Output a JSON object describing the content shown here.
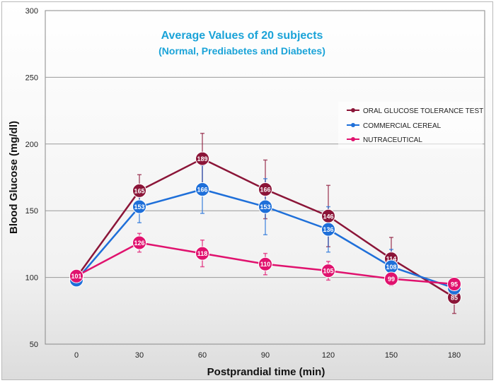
{
  "chart_data": {
    "type": "line",
    "title": "Average Values of 20 subjects",
    "subtitle": "(Normal, Prediabetes and Diabetes)",
    "xlabel": "Postprandial time (min)",
    "ylabel": "Blood Glucose  (mg/dl)",
    "x": [
      0,
      30,
      60,
      90,
      120,
      150,
      180
    ],
    "ylim": [
      50,
      300
    ],
    "yticks": [
      50,
      100,
      150,
      200,
      250,
      300
    ],
    "grid": true,
    "legend_position": "right",
    "series": [
      {
        "name": "ORAL GLUCOSE TOLERANCE TEST",
        "color": "#8b1538",
        "values": [
          100,
          165,
          189,
          166,
          146,
          114,
          85
        ],
        "error_high": [
          104,
          177,
          208,
          188,
          169,
          130,
          94
        ],
        "error_low": [
          96,
          153,
          170,
          144,
          123,
          98,
          73
        ],
        "labels": [
          "100",
          "165",
          "189",
          "166",
          "146",
          "114",
          "85"
        ]
      },
      {
        "name": "COMMERCIAL CEREAL",
        "color": "#1e6fd9",
        "values": [
          98,
          153,
          166,
          153,
          136,
          108,
          92
        ],
        "error_high": [
          102,
          165,
          184,
          174,
          153,
          121,
          97
        ],
        "error_low": [
          94,
          141,
          148,
          132,
          119,
          95,
          87
        ],
        "labels": [
          "98",
          "153",
          "166",
          "153",
          "136",
          "108",
          "92"
        ]
      },
      {
        "name": "NUTRACEUTICAL",
        "color": "#e0126e",
        "values": [
          101,
          126,
          118,
          110,
          105,
          99,
          95
        ],
        "error_high": [
          105,
          133,
          128,
          118,
          112,
          104,
          99
        ],
        "error_low": [
          97,
          119,
          108,
          102,
          98,
          94,
          91
        ],
        "labels": [
          "101",
          "126",
          "118",
          "110",
          "105",
          "99",
          "95"
        ]
      }
    ]
  }
}
